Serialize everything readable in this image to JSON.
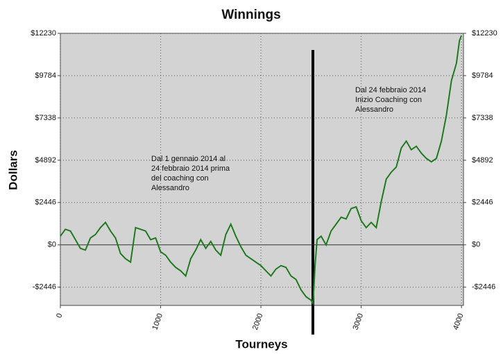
{
  "chart_data": {
    "type": "line",
    "title": "Winnings",
    "xlabel": "Tourneys",
    "ylabel": "Dollars",
    "x": [
      0,
      50,
      100,
      150,
      200,
      250,
      300,
      350,
      400,
      450,
      500,
      550,
      600,
      650,
      700,
      750,
      800,
      850,
      900,
      950,
      1000,
      1050,
      1100,
      1150,
      1200,
      1250,
      1300,
      1350,
      1400,
      1450,
      1500,
      1550,
      1600,
      1650,
      1700,
      1750,
      1800,
      1850,
      1900,
      1950,
      2000,
      2050,
      2100,
      2150,
      2200,
      2250,
      2300,
      2350,
      2400,
      2450,
      2500,
      2520,
      2540,
      2560,
      2600,
      2650,
      2700,
      2750,
      2800,
      2850,
      2900,
      2950,
      3000,
      3050,
      3100,
      3150,
      3200,
      3250,
      3300,
      3350,
      3400,
      3450,
      3500,
      3550,
      3600,
      3650,
      3700,
      3750,
      3800,
      3850,
      3900,
      3950,
      3980,
      4000
    ],
    "series": [
      {
        "name": "Winnings",
        "color": "#1f7a1f",
        "values": [
          500,
          900,
          800,
          300,
          -200,
          -300,
          400,
          600,
          1000,
          1300,
          800,
          400,
          -500,
          -800,
          -1000,
          1000,
          900,
          800,
          300,
          400,
          -400,
          -600,
          -1000,
          -1300,
          -1500,
          -1800,
          -800,
          -300,
          300,
          -200,
          200,
          -300,
          -600,
          600,
          1200,
          500,
          -100,
          -600,
          -800,
          -1000,
          -1200,
          -1500,
          -1800,
          -1400,
          -1200,
          -1300,
          -1800,
          -2000,
          -2600,
          -3000,
          -3200,
          -3400,
          -1200,
          300,
          500,
          0,
          800,
          1200,
          1600,
          1500,
          2100,
          2200,
          1400,
          1000,
          1300,
          1000,
          2500,
          3800,
          4200,
          4500,
          5600,
          6000,
          5500,
          5700,
          5300,
          5000,
          4800,
          5000,
          6000,
          7500,
          9500,
          10500,
          11800,
          12100
        ]
      }
    ],
    "xlim": [
      0,
      4020
    ],
    "xticks": [
      0,
      1000,
      2000,
      3000,
      4000
    ],
    "ylim": [
      -3500,
      12230
    ],
    "yticks": [
      {
        "value": -2446,
        "label": "-$2446"
      },
      {
        "value": 0,
        "label": "$0"
      },
      {
        "value": 2446,
        "label": "$2446"
      },
      {
        "value": 4892,
        "label": "$4892"
      },
      {
        "value": 7338,
        "label": "$7338"
      },
      {
        "value": 9784,
        "label": "$9784"
      },
      {
        "value": 12230,
        "label": "$12230"
      }
    ],
    "grid": true,
    "annotations": [
      {
        "lines": [
          "Dal 1 gennaio 2014 al",
          "24 febbraio 2014 prima",
          "del coaching con",
          "Alessandro"
        ]
      },
      {
        "lines": [
          "Dal 24 febbraio 2014",
          "Inizio Coaching con",
          "Alessandro"
        ]
      }
    ]
  }
}
